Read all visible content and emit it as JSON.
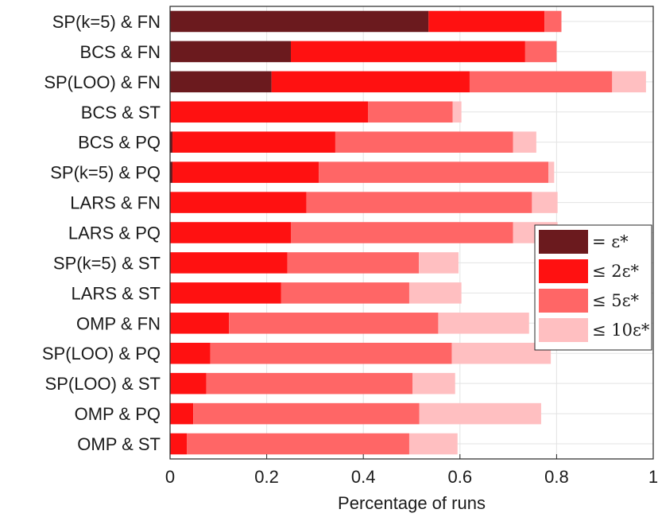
{
  "chart_data": {
    "type": "bar",
    "orientation": "horizontal",
    "stacked": true,
    "xlabel": "Percentage of runs",
    "xlim": [
      0,
      1
    ],
    "xticks": [
      0,
      0.2,
      0.4,
      0.6,
      0.8,
      1
    ],
    "xtick_labels": [
      "0",
      "0.2",
      "0.4",
      "0.6",
      "0.8",
      "1"
    ],
    "grid": true,
    "legend_position": "right",
    "categories": [
      "SP(k=5) & FN",
      "BCS & FN",
      "SP(LOO) & FN",
      "BCS & ST",
      "BCS & PQ",
      "SP(k=5) & PQ",
      "LARS & FN",
      "LARS & PQ",
      "SP(k=5) & ST",
      "LARS & ST",
      "OMP & FN",
      "SP(LOO) & PQ",
      "SP(LOO) & ST",
      "OMP & PQ",
      "OMP & ST"
    ],
    "series": [
      {
        "name": "= ε*",
        "color": "#6b1a1e",
        "values": [
          0.535,
          0.25,
          0.21,
          0.0,
          0.005,
          0.005,
          0.0,
          0.0,
          0.0,
          0.0,
          0.0,
          0.0,
          0.0,
          0.0,
          0.0
        ]
      },
      {
        "name": "≤ 2ε*",
        "color": "#ff1111",
        "values": [
          0.24,
          0.485,
          0.41,
          0.41,
          0.337,
          0.303,
          0.282,
          0.25,
          0.243,
          0.23,
          0.122,
          0.083,
          0.075,
          0.048,
          0.035
        ]
      },
      {
        "name": "≤ 5ε*",
        "color": "#ff6666",
        "values": [
          0.035,
          0.065,
          0.295,
          0.175,
          0.368,
          0.475,
          0.467,
          0.46,
          0.272,
          0.265,
          0.433,
          0.5,
          0.427,
          0.468,
          0.46
        ]
      },
      {
        "name": "≤ 10ε*",
        "color": "#ffbfc1",
        "values": [
          0.0,
          0.0,
          0.07,
          0.018,
          0.048,
          0.012,
          0.053,
          0.092,
          0.082,
          0.108,
          0.188,
          0.205,
          0.088,
          0.252,
          0.1
        ]
      }
    ]
  }
}
